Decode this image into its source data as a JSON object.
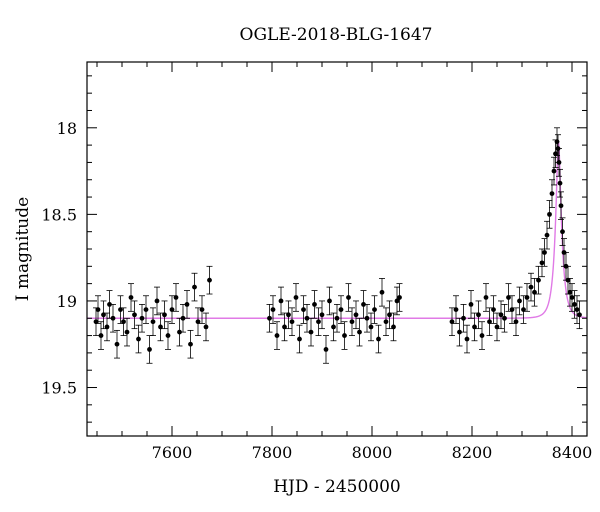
{
  "chart_data": {
    "type": "scatter",
    "title": "OGLE-2018-BLG-1647",
    "xlabel": "HJD - 2450000",
    "ylabel": "I magnitude",
    "xlim": [
      7430,
      8430
    ],
    "ylim": [
      19.78,
      17.62
    ],
    "y_inverted": true,
    "x_ticks": [
      7600,
      7800,
      8000,
      8200,
      8400
    ],
    "y_ticks": [
      18,
      18.5,
      19,
      19.5
    ],
    "x_tick_labels": [
      "7600",
      "7800",
      "8000",
      "8200",
      "8400"
    ],
    "y_tick_labels": [
      "18",
      "18.5",
      "19",
      "19.5"
    ],
    "baseline_mag": 19.1,
    "peak_time": 8373,
    "peak_mag": 18.08,
    "model_color": "#e07ae6",
    "point_color": "#000000",
    "observing_seasons": [
      [
        7445,
        7680
      ],
      [
        7790,
        8060
      ],
      [
        8155,
        8420
      ]
    ],
    "series": [
      {
        "type": "points_with_errorbars",
        "x": [
          7448,
          7452,
          7458,
          7463,
          7470,
          7475,
          7482,
          7490,
          7497,
          7503,
          7510,
          7518,
          7525,
          7533,
          7540,
          7548,
          7555,
          7562,
          7570,
          7577,
          7585,
          7592,
          7600,
          7608,
          7615,
          7622,
          7630,
          7637,
          7645,
          7652,
          7660,
          7668,
          7675,
          7795,
          7802,
          7810,
          7818,
          7825,
          7833,
          7840,
          7848,
          7855,
          7863,
          7870,
          7878,
          7885,
          7893,
          7900,
          7908,
          7915,
          7923,
          7930,
          7938,
          7945,
          7953,
          7960,
          7968,
          7975,
          7983,
          7990,
          7998,
          8005,
          8013,
          8020,
          8028,
          8035,
          8043,
          8050,
          8055,
          8160,
          8168,
          8175,
          8183,
          8190,
          8198,
          8205,
          8213,
          8220,
          8228,
          8235,
          8243,
          8250,
          8258,
          8265,
          8273,
          8280,
          8288,
          8295,
          8303,
          8310,
          8318,
          8325,
          8333,
          8340,
          8345,
          8350,
          8355,
          8360,
          8364,
          8367,
          8370,
          8372,
          8374,
          8376,
          8378,
          8381,
          8384,
          8388,
          8392,
          8396,
          8400,
          8405,
          8410,
          8415
        ],
        "y": [
          19.12,
          19.05,
          19.2,
          19.08,
          19.15,
          19.02,
          19.1,
          19.25,
          19.05,
          19.12,
          19.18,
          18.98,
          19.08,
          19.22,
          19.1,
          19.05,
          19.28,
          19.12,
          19.0,
          19.15,
          19.08,
          19.2,
          19.05,
          18.98,
          19.18,
          19.1,
          19.02,
          19.25,
          18.92,
          19.12,
          19.05,
          19.15,
          18.88,
          19.1,
          19.05,
          19.2,
          19.0,
          19.15,
          19.08,
          19.12,
          18.98,
          19.22,
          19.05,
          19.1,
          19.18,
          19.02,
          19.12,
          19.08,
          19.28,
          19.0,
          19.15,
          19.1,
          19.05,
          19.2,
          18.98,
          19.12,
          19.08,
          19.18,
          19.02,
          19.1,
          19.15,
          19.05,
          19.22,
          18.95,
          19.12,
          19.08,
          19.15,
          19.0,
          18.98,
          19.12,
          19.05,
          19.18,
          19.1,
          19.22,
          19.02,
          19.15,
          19.08,
          19.2,
          18.98,
          19.12,
          19.05,
          19.15,
          19.08,
          19.1,
          18.98,
          19.05,
          19.12,
          19.0,
          19.05,
          18.98,
          18.92,
          18.95,
          18.88,
          18.78,
          18.72,
          18.62,
          18.5,
          18.38,
          18.25,
          18.15,
          18.08,
          18.12,
          18.2,
          18.32,
          18.45,
          18.6,
          18.72,
          18.8,
          18.88,
          18.95,
          18.98,
          19.02,
          19.05,
          19.08
        ]
      }
    ]
  }
}
